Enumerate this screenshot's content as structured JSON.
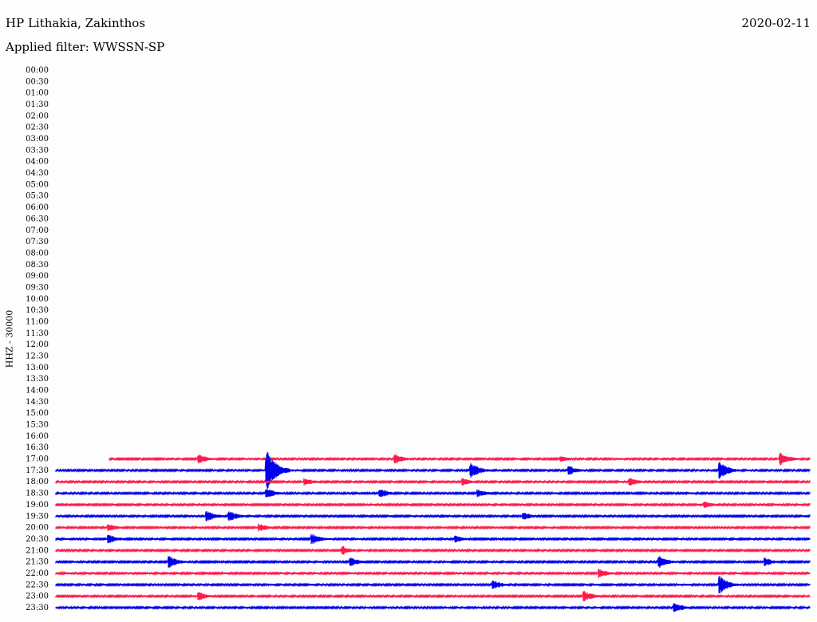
{
  "header": {
    "station": "HP Lithakia, Zakinthos",
    "date": "2020-02-11",
    "filter_label": "Applied filter:",
    "filter_value": "WWSSN-SP"
  },
  "chart_data": {
    "type": "line",
    "title": "HP Lithakia, Zakinthos",
    "channel_label": "HHZ - 30000",
    "filter": "WWSSN-SP",
    "date": "2020-02-11",
    "row_labels": [
      "00:00",
      "00:30",
      "01:00",
      "01:30",
      "02:00",
      "02:30",
      "03:00",
      "03:30",
      "04:00",
      "04:30",
      "05:00",
      "05:30",
      "06:00",
      "06:30",
      "07:00",
      "07:30",
      "08:00",
      "08:30",
      "09:00",
      "09:30",
      "10:00",
      "10:30",
      "11:00",
      "11:30",
      "12:00",
      "12:30",
      "13:00",
      "13:30",
      "14:00",
      "14:30",
      "15:00",
      "15:30",
      "16:00",
      "16:30",
      "17:00",
      "17:30",
      "18:00",
      "18:30",
      "19:00",
      "19:30",
      "20:00",
      "20:30",
      "21:00",
      "21:30",
      "22:00",
      "22:30",
      "23:00",
      "23:30"
    ],
    "series_colors": [
      "#ff1a4d",
      "#0000ee"
    ],
    "data_start_label": "17:00",
    "recording_start_fraction": 0.07,
    "noise_level": 0.25,
    "events": [
      {
        "row": "17:00",
        "at": 0.19,
        "amp": 1.4
      },
      {
        "row": "17:00",
        "at": 0.45,
        "amp": 1.5
      },
      {
        "row": "17:00",
        "at": 0.67,
        "amp": 0.8
      },
      {
        "row": "17:00",
        "at": 0.96,
        "amp": 1.9
      },
      {
        "row": "17:30",
        "at": 0.28,
        "amp": 6.0
      },
      {
        "row": "17:30",
        "at": 0.55,
        "amp": 2.4
      },
      {
        "row": "17:30",
        "at": 0.68,
        "amp": 1.4
      },
      {
        "row": "17:30",
        "at": 0.88,
        "amp": 2.5
      },
      {
        "row": "18:00",
        "at": 0.33,
        "amp": 1.2
      },
      {
        "row": "18:00",
        "at": 0.54,
        "amp": 1.0
      },
      {
        "row": "18:00",
        "at": 0.76,
        "amp": 1.3
      },
      {
        "row": "18:30",
        "at": 0.28,
        "amp": 1.5
      },
      {
        "row": "18:30",
        "at": 0.43,
        "amp": 1.4
      },
      {
        "row": "18:30",
        "at": 0.56,
        "amp": 1.1
      },
      {
        "row": "19:00",
        "at": 0.86,
        "amp": 1.0
      },
      {
        "row": "19:30",
        "at": 0.2,
        "amp": 1.7
      },
      {
        "row": "19:30",
        "at": 0.23,
        "amp": 1.5
      },
      {
        "row": "19:30",
        "at": 0.62,
        "amp": 1.1
      },
      {
        "row": "20:00",
        "at": 0.07,
        "amp": 1.2
      },
      {
        "row": "20:00",
        "at": 0.27,
        "amp": 1.2
      },
      {
        "row": "20:30",
        "at": 0.07,
        "amp": 1.4
      },
      {
        "row": "20:30",
        "at": 0.34,
        "amp": 1.5
      },
      {
        "row": "20:30",
        "at": 0.53,
        "amp": 1.1
      },
      {
        "row": "21:00",
        "at": 0.38,
        "amp": 1.3
      },
      {
        "row": "21:30",
        "at": 0.15,
        "amp": 1.8
      },
      {
        "row": "21:30",
        "at": 0.39,
        "amp": 1.4
      },
      {
        "row": "21:30",
        "at": 0.8,
        "amp": 1.7
      },
      {
        "row": "21:30",
        "at": 0.94,
        "amp": 1.2
      },
      {
        "row": "22:00",
        "at": 0.72,
        "amp": 1.3
      },
      {
        "row": "22:30",
        "at": 0.58,
        "amp": 1.3
      },
      {
        "row": "22:30",
        "at": 0.88,
        "amp": 2.5
      },
      {
        "row": "23:00",
        "at": 0.19,
        "amp": 1.3
      },
      {
        "row": "23:00",
        "at": 0.7,
        "amp": 1.6
      },
      {
        "row": "23:30",
        "at": 0.82,
        "amp": 1.5
      }
    ]
  }
}
